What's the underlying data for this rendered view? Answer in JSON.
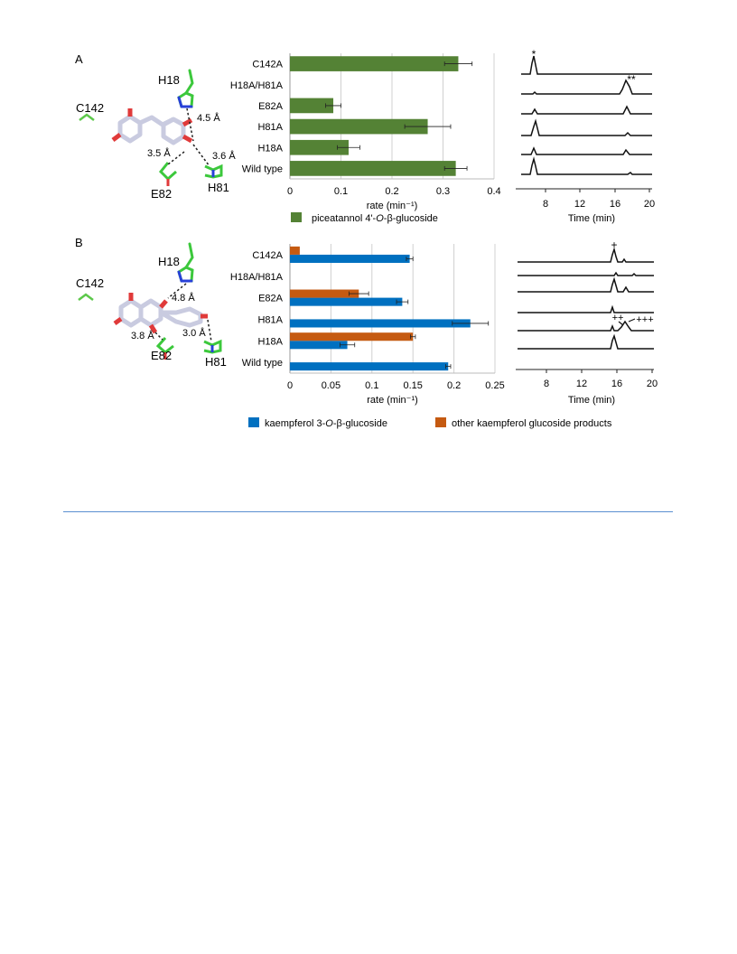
{
  "panels": {
    "A": {
      "label": "A",
      "structure": {
        "residues": [
          "H18",
          "C142",
          "E82",
          "H81"
        ],
        "distances": [
          "4.5 Å",
          "3.5 Å",
          "3.6 Å"
        ]
      },
      "legend": [
        {
          "parts": [
            "piceatannol 4'-",
            "O",
            "-β-glucoside"
          ],
          "color": "#548235"
        }
      ],
      "chromatogram": {
        "xlabel": "Time (min)",
        "xticks": [
          "8",
          "12",
          "16",
          "20"
        ],
        "annotations": [
          "*",
          "**"
        ]
      }
    },
    "B": {
      "label": "B",
      "structure": {
        "residues": [
          "H18",
          "C142",
          "E82",
          "H81"
        ],
        "distances": [
          "4.8 Å",
          "3.8 Å",
          "3.0 Å"
        ]
      },
      "legend": [
        {
          "parts": [
            "kaempferol 3-",
            "O",
            "-β-glucoside"
          ],
          "color": "#0070c0"
        },
        {
          "parts": [
            "other kaempferol glucoside products"
          ],
          "color": "#c55a11"
        }
      ],
      "chromatogram": {
        "xlabel": "Time (min)",
        "xticks": [
          "8",
          "12",
          "16",
          "20"
        ],
        "annotations": [
          "+",
          "++",
          "+++"
        ]
      }
    }
  },
  "chart_data": [
    {
      "type": "bar",
      "orientation": "horizontal",
      "categories": [
        "C142A",
        "H18A/H81A",
        "E82A",
        "H81A",
        "H18A",
        "Wild type"
      ],
      "series": [
        {
          "name": "piceatannol 4'-O-β-glucoside",
          "color": "#548235",
          "values": [
            0.33,
            0,
            0.085,
            0.27,
            0.115,
            0.325
          ],
          "errors": [
            0.027,
            0,
            0.015,
            0.045,
            0.022,
            0.022
          ]
        }
      ],
      "xlabel": "rate (min⁻¹)",
      "xlim": [
        0,
        0.4
      ],
      "xticks": [
        0,
        0.1,
        0.2,
        0.3,
        0.4
      ],
      "grid": true
    },
    {
      "type": "bar",
      "orientation": "horizontal",
      "categories": [
        "C142A",
        "H18A/H81A",
        "E82A",
        "H81A",
        "H18A",
        "Wild type"
      ],
      "series": [
        {
          "name": "kaempferol 3-O-β-glucoside",
          "color": "#0070c0",
          "values": [
            0.146,
            0,
            0.137,
            0.22,
            0.07,
            0.193
          ],
          "errors": [
            0.004,
            0,
            0.007,
            0.022,
            0.009,
            0.003
          ]
        },
        {
          "name": "other kaempferol glucoside products",
          "color": "#c55a11",
          "values": [
            0.012,
            0,
            0.084,
            0,
            0.15,
            0
          ],
          "errors": [
            0,
            0,
            0.012,
            0,
            0.003,
            0
          ]
        }
      ],
      "xlabel": "rate (min⁻¹)",
      "xlim": [
        0,
        0.25
      ],
      "xticks": [
        0,
        0.05,
        0.1,
        0.15,
        0.2,
        0.25
      ],
      "grid": true
    }
  ]
}
